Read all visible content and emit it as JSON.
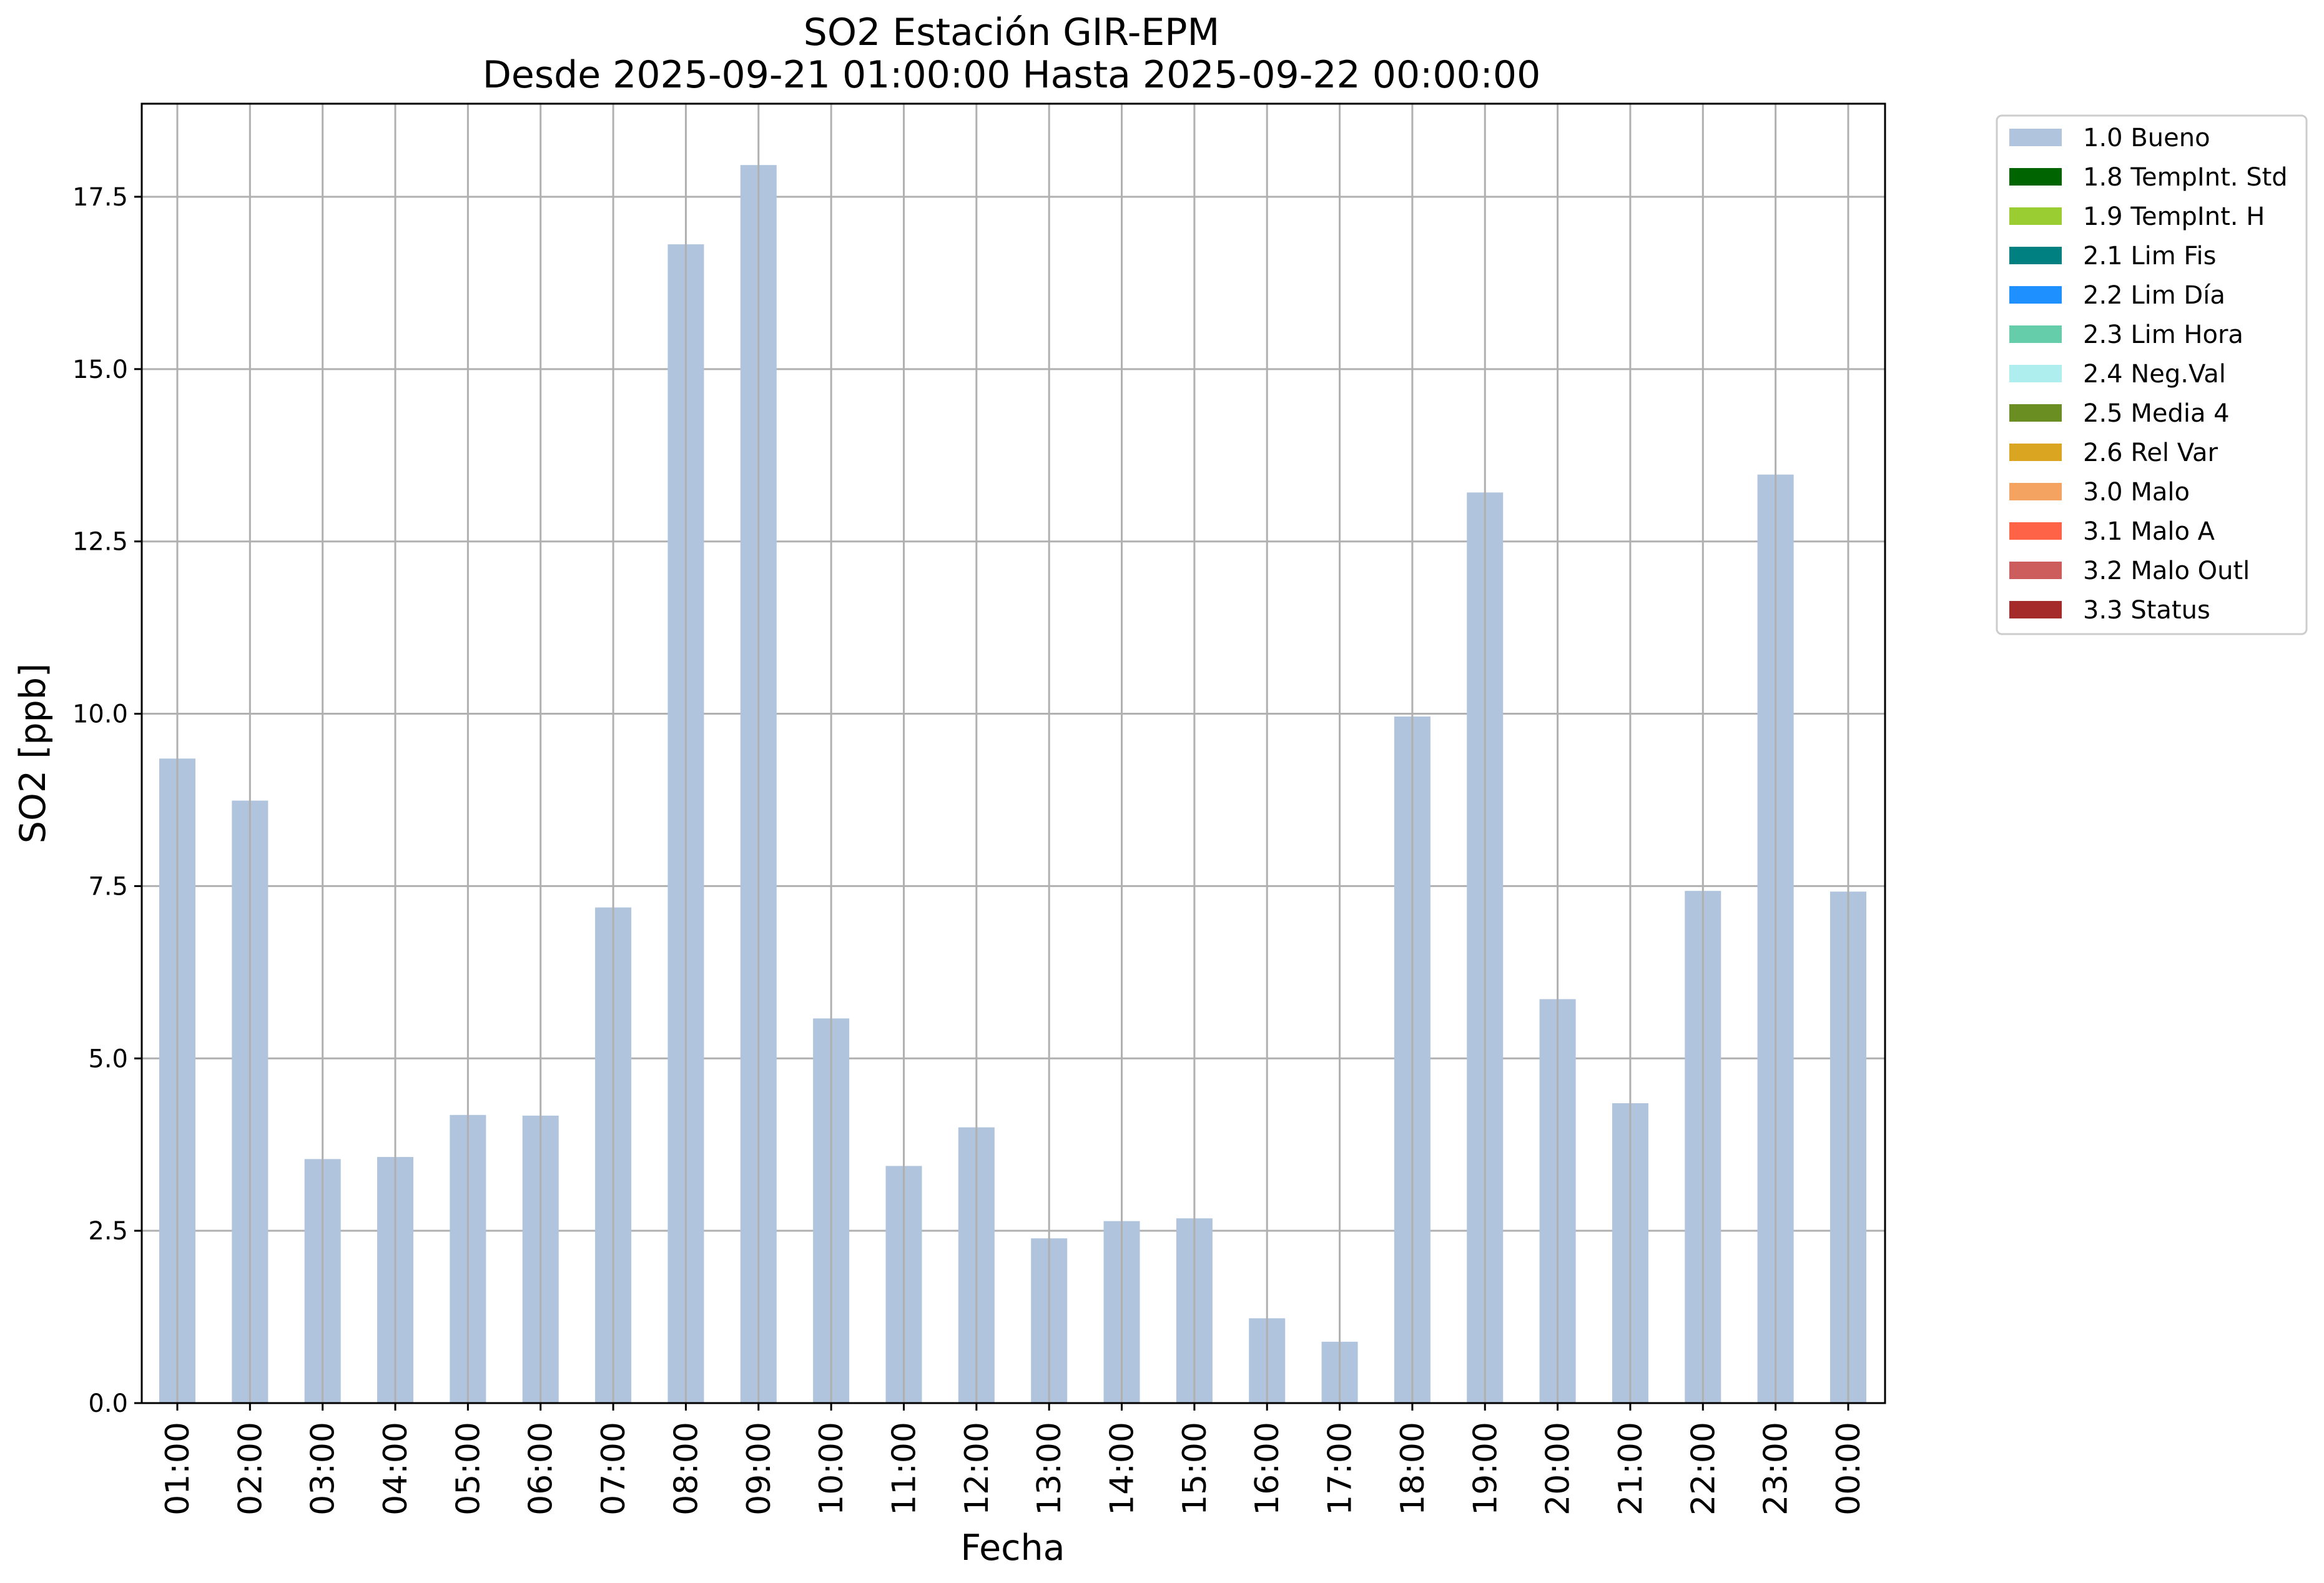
{
  "chart_data": {
    "type": "bar",
    "title_line1": "SO2 Estación GIR-EPM",
    "title_line2": "Desde 2025-09-21 01:00:00 Hasta 2025-09-22 00:00:00",
    "xlabel": "Fecha",
    "ylabel": "SO2 [ppb]",
    "ylim": [
      0,
      18.85
    ],
    "yticks": [
      "0.0",
      "2.5",
      "5.0",
      "7.5",
      "10.0",
      "12.5",
      "15.0",
      "17.5"
    ],
    "categories": [
      "01:00",
      "02:00",
      "03:00",
      "04:00",
      "05:00",
      "06:00",
      "07:00",
      "08:00",
      "09:00",
      "10:00",
      "11:00",
      "12:00",
      "13:00",
      "14:00",
      "15:00",
      "16:00",
      "17:00",
      "18:00",
      "19:00",
      "20:00",
      "21:00",
      "22:00",
      "23:00",
      "00:00"
    ],
    "values": [
      9.35,
      8.74,
      3.54,
      3.57,
      4.18,
      4.17,
      7.19,
      16.81,
      17.96,
      5.58,
      3.44,
      4.0,
      2.39,
      2.64,
      2.68,
      1.23,
      0.89,
      9.96,
      13.21,
      5.86,
      4.35,
      7.43,
      13.47,
      7.42
    ],
    "bar_color": "#b0c4de",
    "grid": true,
    "legend_position": "outside upper-right",
    "legend": [
      {
        "label": "1.0 Bueno",
        "color": "#b0c4de"
      },
      {
        "label": "1.8 TempInt. Std",
        "color": "#006400"
      },
      {
        "label": "1.9 TempInt. H",
        "color": "#9acd32"
      },
      {
        "label": "2.1 Lim Fis",
        "color": "#008080"
      },
      {
        "label": "2.2 Lim Día",
        "color": "#1e90ff"
      },
      {
        "label": "2.3 Lim Hora",
        "color": "#66cdaa"
      },
      {
        "label": "2.4 Neg.Val",
        "color": "#afeeee"
      },
      {
        "label": "2.5 Media 4",
        "color": "#6b8e23"
      },
      {
        "label": "2.6 Rel Var",
        "color": "#daa520"
      },
      {
        "label": "3.0 Malo",
        "color": "#f4a460"
      },
      {
        "label": "3.1 Malo A",
        "color": "#ff6347"
      },
      {
        "label": "3.2 Malo Outl",
        "color": "#cd5c5c"
      },
      {
        "label": "3.3 Status",
        "color": "#a52a2a"
      }
    ]
  }
}
